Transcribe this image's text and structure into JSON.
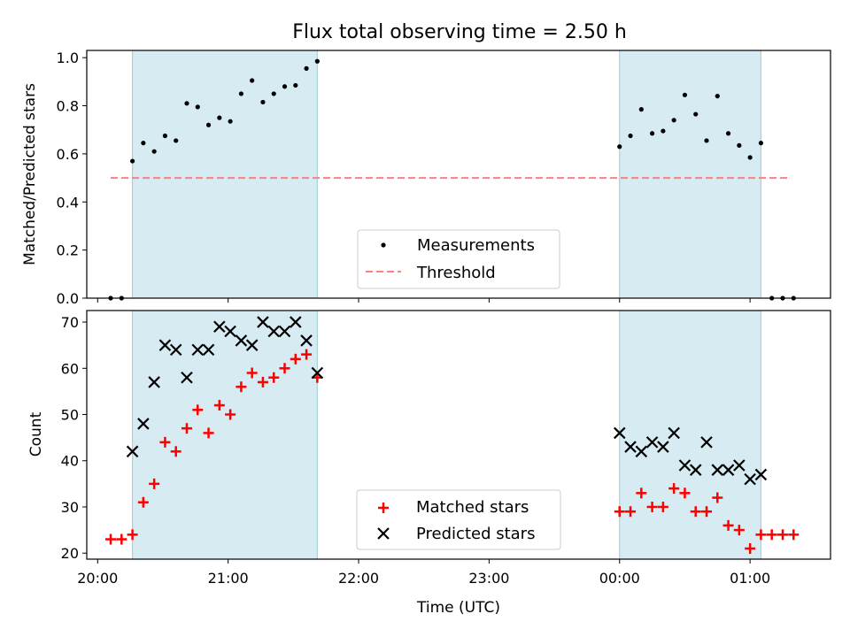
{
  "chart_data": [
    {
      "type": "scatter",
      "title": "Flux total observing time = 2.50 h",
      "xlabel": "",
      "ylabel": "Matched/Predicted stars",
      "xlim": [
        "19:55",
        "01:37"
      ],
      "ylim": [
        0.0,
        1.03
      ],
      "y_ticks": [
        "0.0",
        "0.2",
        "0.4",
        "0.6",
        "0.8",
        "1.0"
      ],
      "shaded_intervals": [
        [
          "20:16",
          "21:41"
        ],
        [
          "00:00",
          "01:05"
        ]
      ],
      "legend": {
        "position": "bottom-center",
        "entries": [
          "Measurements",
          "Threshold"
        ]
      },
      "threshold": {
        "name": "Threshold",
        "y": 0.5,
        "x_range": [
          "20:06",
          "01:18"
        ],
        "color": "#ff7f7f"
      },
      "series": [
        {
          "name": "Measurements",
          "color": "#000000",
          "marker": "dot",
          "x": [
            "20:06",
            "20:11",
            "20:16",
            "20:21",
            "20:26",
            "20:31",
            "20:36",
            "20:41",
            "20:46",
            "20:51",
            "20:56",
            "21:01",
            "21:06",
            "21:11",
            "21:16",
            "21:21",
            "21:26",
            "21:31",
            "21:36",
            "21:41",
            "00:00",
            "00:05",
            "00:10",
            "00:15",
            "00:20",
            "00:25",
            "00:30",
            "00:35",
            "00:40",
            "00:45",
            "00:50",
            "00:55",
            "01:00",
            "01:05",
            "01:10",
            "01:15",
            "01:20"
          ],
          "y": [
            0.0,
            0.0,
            0.57,
            0.645,
            0.61,
            0.675,
            0.655,
            0.81,
            0.795,
            0.72,
            0.75,
            0.735,
            0.85,
            0.905,
            0.815,
            0.85,
            0.88,
            0.885,
            0.955,
            0.985,
            0.63,
            0.675,
            0.785,
            0.685,
            0.695,
            0.74,
            0.845,
            0.765,
            0.655,
            0.84,
            0.685,
            0.635,
            0.585,
            0.645,
            0.0,
            0.0,
            0.0
          ]
        }
      ]
    },
    {
      "type": "scatter",
      "title": "",
      "xlabel": "Time (UTC)",
      "ylabel": "Count",
      "xlim": [
        "19:55",
        "01:37"
      ],
      "ylim": [
        18.7,
        72.5
      ],
      "y_ticks": [
        "20",
        "30",
        "40",
        "50",
        "60",
        "70"
      ],
      "x_ticks": [
        "20:00",
        "21:00",
        "22:00",
        "23:00",
        "00:00",
        "01:00"
      ],
      "shaded_intervals": [
        [
          "20:16",
          "21:41"
        ],
        [
          "00:00",
          "01:05"
        ]
      ],
      "legend": {
        "position": "bottom-center",
        "entries": [
          "Matched stars",
          "Predicted stars"
        ]
      },
      "series": [
        {
          "name": "Matched stars",
          "color": "#ff0000",
          "marker": "plus",
          "x": [
            "20:06",
            "20:11",
            "20:16",
            "20:21",
            "20:26",
            "20:31",
            "20:36",
            "20:41",
            "20:46",
            "20:51",
            "20:56",
            "21:01",
            "21:06",
            "21:11",
            "21:16",
            "21:21",
            "21:26",
            "21:31",
            "21:36",
            "21:41",
            "00:00",
            "00:05",
            "00:10",
            "00:15",
            "00:20",
            "00:25",
            "00:30",
            "00:35",
            "00:40",
            "00:45",
            "00:50",
            "00:55",
            "01:00",
            "01:05",
            "01:10",
            "01:15",
            "01:20"
          ],
          "y": [
            23,
            23,
            24,
            31,
            35,
            44,
            42,
            47,
            51,
            46,
            52,
            50,
            56,
            59,
            57,
            58,
            60,
            62,
            63,
            58,
            29,
            29,
            33,
            30,
            30,
            34,
            33,
            29,
            29,
            32,
            26,
            25,
            21,
            24,
            24,
            24,
            24
          ]
        },
        {
          "name": "Predicted stars",
          "color": "#000000",
          "marker": "x",
          "x": [
            "20:16",
            "20:21",
            "20:26",
            "20:31",
            "20:36",
            "20:41",
            "20:46",
            "20:51",
            "20:56",
            "21:01",
            "21:06",
            "21:11",
            "21:16",
            "21:21",
            "21:26",
            "21:31",
            "21:36",
            "21:41",
            "00:00",
            "00:05",
            "00:10",
            "00:15",
            "00:20",
            "00:25",
            "00:30",
            "00:35",
            "00:40",
            "00:45",
            "00:50",
            "00:55",
            "01:00",
            "01:05"
          ],
          "y": [
            42,
            48,
            57,
            65,
            64,
            58,
            64,
            64,
            69,
            68,
            66,
            65,
            70,
            68,
            68,
            70,
            66,
            59,
            46,
            43,
            42,
            44,
            43,
            46,
            39,
            38,
            44,
            38,
            38,
            39,
            36,
            37
          ]
        }
      ]
    }
  ]
}
